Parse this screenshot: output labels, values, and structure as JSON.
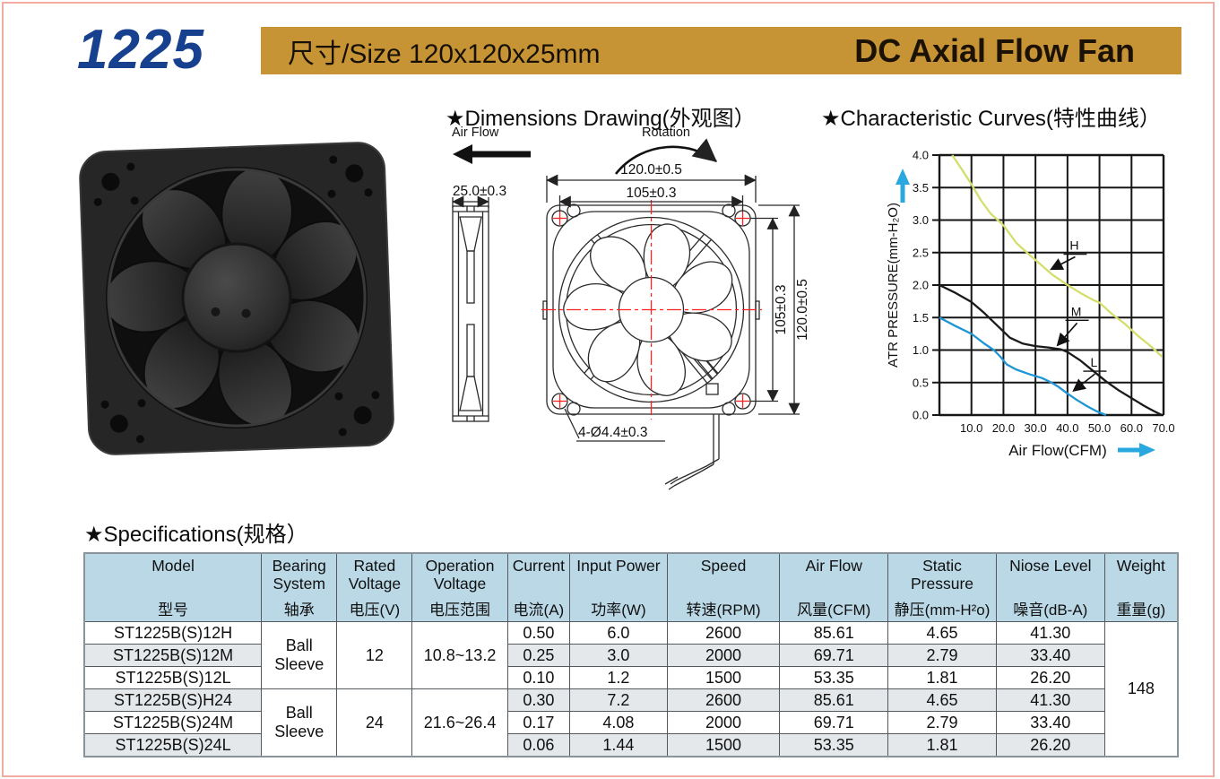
{
  "header": {
    "model_number": "1225",
    "size_label": "尺寸/Size 120x120x25mm",
    "product_name": "DC Axial Flow Fan"
  },
  "sections": {
    "dimensions_title": "★Dimensions Drawing(外观图）",
    "curves_title": "★Characteristic Curves(特性曲线）",
    "specs_title": "★Specifications(规格）"
  },
  "drawing": {
    "air_flow_label": "Air Flow",
    "rotation_label": "Rotation",
    "depth_dim": "25.0±0.3",
    "outer_width_dim": "120.0±0.5",
    "hole_pitch_dim_h": "105±0.3",
    "hole_pitch_dim_v": "105±0.3",
    "outer_height_dim": "120.0±0.5",
    "mounting_hole_note": "4-Ø4.4±0.3"
  },
  "chart_data": {
    "type": "line",
    "title": "",
    "xlabel": "Air Flow(CFM)",
    "ylabel": "ATR PRESSURE(mm-H₂O)",
    "xlim": [
      0,
      70
    ],
    "ylim": [
      0,
      4
    ],
    "xticks": [
      "10.0",
      "20.0",
      "30.0",
      "40.0",
      "50.0",
      "60.0",
      "70.0"
    ],
    "yticks": [
      "0.0",
      "0.5",
      "1.0",
      "1.5",
      "2.0",
      "2.5",
      "3.0",
      "3.5",
      "4.0"
    ],
    "grid": true,
    "legend_position": "inline-labels",
    "series": [
      {
        "name": "H",
        "color": "#d4de6b",
        "label_at": [
          34,
          2.2
        ],
        "points": [
          [
            4,
            4.0
          ],
          [
            7,
            3.78
          ],
          [
            10,
            3.55
          ],
          [
            13,
            3.3
          ],
          [
            16,
            3.1
          ],
          [
            20,
            2.92
          ],
          [
            24,
            2.65
          ],
          [
            28,
            2.47
          ],
          [
            32,
            2.3
          ],
          [
            35,
            2.17
          ],
          [
            40,
            2.0
          ],
          [
            44,
            1.88
          ],
          [
            48,
            1.77
          ],
          [
            50,
            1.73
          ],
          [
            54,
            1.55
          ],
          [
            58,
            1.4
          ],
          [
            62,
            1.22
          ],
          [
            66,
            1.06
          ],
          [
            69.5,
            0.9
          ]
        ]
      },
      {
        "name": "M",
        "color": "#1a1a1a",
        "label_at": [
          36,
          1.03
        ],
        "points": [
          [
            0,
            2.0
          ],
          [
            5,
            1.88
          ],
          [
            10,
            1.74
          ],
          [
            14,
            1.57
          ],
          [
            18,
            1.38
          ],
          [
            22,
            1.19
          ],
          [
            26,
            1.1
          ],
          [
            30,
            1.06
          ],
          [
            34,
            1.04
          ],
          [
            38,
            1.01
          ],
          [
            40,
            0.97
          ],
          [
            44,
            0.84
          ],
          [
            48,
            0.68
          ],
          [
            52,
            0.52
          ],
          [
            56,
            0.38
          ],
          [
            60,
            0.26
          ],
          [
            64,
            0.14
          ],
          [
            67,
            0.06
          ],
          [
            69.5,
            0.0
          ]
        ]
      },
      {
        "name": "L",
        "color": "#1e96d5",
        "label_at": [
          41,
          0.33
        ],
        "points": [
          [
            0,
            1.5
          ],
          [
            5,
            1.37
          ],
          [
            10,
            1.25
          ],
          [
            14,
            1.1
          ],
          [
            17,
            1.0
          ],
          [
            19,
            0.9
          ],
          [
            21,
            0.78
          ],
          [
            24,
            0.7
          ],
          [
            28,
            0.63
          ],
          [
            32,
            0.57
          ],
          [
            35,
            0.5
          ],
          [
            37,
            0.44
          ],
          [
            40,
            0.33
          ],
          [
            43,
            0.23
          ],
          [
            46,
            0.14
          ],
          [
            49,
            0.06
          ],
          [
            52,
            0.0
          ]
        ]
      }
    ]
  },
  "spec_table": {
    "columns": [
      {
        "en": "Model",
        "zh": "型号"
      },
      {
        "en": "Bearing System",
        "zh": "轴承"
      },
      {
        "en": "Rated Voltage",
        "zh": "电压(V)"
      },
      {
        "en": "Operation Voltage",
        "zh": "电压范围"
      },
      {
        "en": "Current",
        "zh": "电流(A)"
      },
      {
        "en": "Input Power",
        "zh": "功率(W)"
      },
      {
        "en": "Speed",
        "zh": "转速(RPM)"
      },
      {
        "en": "Air Flow",
        "zh": "风量(CFM)"
      },
      {
        "en": "Static Pressure",
        "zh": "静压(mm-H²o)"
      },
      {
        "en": "Niose Level",
        "zh": "噪音(dB-A)"
      },
      {
        "en": "Weight",
        "zh": "重量(g)"
      }
    ],
    "groups": [
      {
        "bearing": "Ball Sleeve",
        "rated_voltage": "12",
        "operation_voltage": "10.8~13.2"
      },
      {
        "bearing": "Ball Sleeve",
        "rated_voltage": "24",
        "operation_voltage": "21.6~26.4"
      }
    ],
    "rows": [
      {
        "model": "ST1225B(S)12H",
        "current": "0.50",
        "power": "6.0",
        "speed": "2600",
        "airflow": "85.61",
        "pressure": "4.65",
        "noise": "41.30"
      },
      {
        "model": "ST1225B(S)12M",
        "current": "0.25",
        "power": "3.0",
        "speed": "2000",
        "airflow": "69.71",
        "pressure": "2.79",
        "noise": "33.40"
      },
      {
        "model": "ST1225B(S)12L",
        "current": "0.10",
        "power": "1.2",
        "speed": "1500",
        "airflow": "53.35",
        "pressure": "1.81",
        "noise": "26.20"
      },
      {
        "model": "ST1225B(S)H24",
        "current": "0.30",
        "power": "7.2",
        "speed": "2600",
        "airflow": "85.61",
        "pressure": "4.65",
        "noise": "41.30"
      },
      {
        "model": "ST1225B(S)24M",
        "current": "0.17",
        "power": "4.08",
        "speed": "2000",
        "airflow": "69.71",
        "pressure": "2.79",
        "noise": "33.40"
      },
      {
        "model": "ST1225B(S)24L",
        "current": "0.06",
        "power": "1.44",
        "speed": "1500",
        "airflow": "53.35",
        "pressure": "1.81",
        "noise": "26.20"
      }
    ],
    "weight": "148"
  },
  "colors": {
    "banner_gold": "#c69434",
    "model_blue": "#17418f",
    "accent_blue": "#29a8e0",
    "dim_red": "#ff2222",
    "table_header_blue": "#bad8e6",
    "row_alt_gray": "#e5e8ea",
    "page_border_pink": "#f4aba2",
    "curve_h": "#d4de6b",
    "curve_m": "#1a1a1a",
    "curve_l": "#1e96d5"
  }
}
